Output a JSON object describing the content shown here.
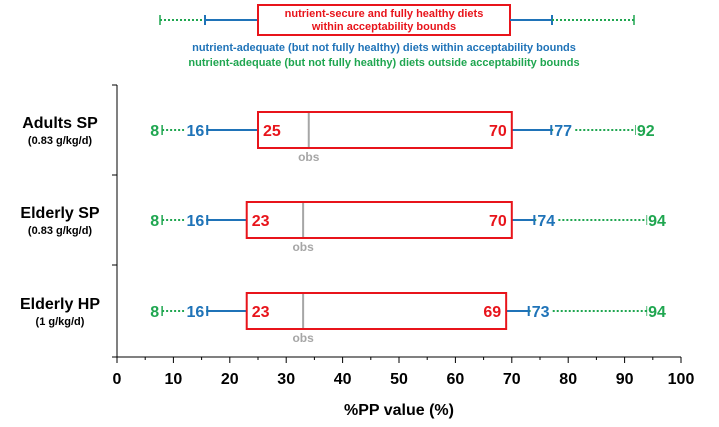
{
  "chart_data": {
    "type": "range-bar",
    "xlabel": "%PP value (%)",
    "xlim": [
      0,
      100
    ],
    "xticks": [
      0,
      10,
      20,
      30,
      40,
      50,
      60,
      70,
      80,
      90,
      100
    ],
    "xtick_labels": [
      "0",
      "10",
      "20",
      "30",
      "40",
      "50",
      "60",
      "70",
      "80",
      "90",
      "100"
    ],
    "obs_label": "obs",
    "legend": {
      "red": "nutrient-secure and fully healthy diets within acceptability bounds",
      "red_lines": [
        "nutrient-secure and fully healthy diets",
        "within acceptability bounds"
      ],
      "blue": "nutrient-adequate (but not fully healthy) diets within acceptability bounds",
      "green": "nutrient-adequate (but not fully healthy) diets outside acceptability bounds"
    },
    "categories": [
      {
        "label": "Adults SP",
        "sublabel": "(0.83 g/kg/d)",
        "green_min": 8,
        "blue_min": 16,
        "red_min": 25,
        "obs": 34,
        "red_max": 70,
        "blue_max": 77,
        "green_max": 92
      },
      {
        "label": "Elderly SP",
        "sublabel": "(0.83 g/kg/d)",
        "green_min": 8,
        "blue_min": 16,
        "red_min": 23,
        "obs": 33,
        "red_max": 70,
        "blue_max": 74,
        "green_max": 94
      },
      {
        "label": "Elderly HP",
        "sublabel": "(1 g/kg/d)",
        "green_min": 8,
        "blue_min": 16,
        "red_min": 23,
        "obs": 33,
        "red_max": 69,
        "blue_max": 73,
        "green_max": 94
      }
    ],
    "colors": {
      "red": "#e8141b",
      "blue": "#1f73b8",
      "green": "#1fa650",
      "obs": "#a6a6a6"
    }
  }
}
